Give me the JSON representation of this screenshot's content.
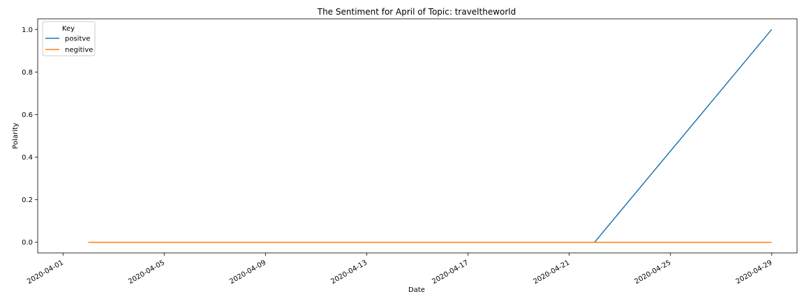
{
  "chart_data": {
    "type": "line",
    "title": "The Sentiment for April of Topic: traveltheworld",
    "xlabel": "Date",
    "ylabel": "Polarity",
    "xlim": [
      "2020-03-31",
      "2020-04-30"
    ],
    "ylim": [
      -0.05,
      1.05
    ],
    "x_ticks": [
      "2020-04-01",
      "2020-04-05",
      "2020-04-09",
      "2020-04-13",
      "2020-04-17",
      "2020-04-21",
      "2020-04-25",
      "2020-04-29"
    ],
    "y_ticks": [
      0.0,
      0.2,
      0.4,
      0.6,
      0.8,
      1.0
    ],
    "y_tick_labels": [
      "0.0",
      "0.2",
      "0.4",
      "0.6",
      "0.8",
      "1.0"
    ],
    "grid": false,
    "legend": {
      "title": "Key",
      "placement": "top-left"
    },
    "series": [
      {
        "name": "positve",
        "color": "#1f77b4",
        "points": [
          {
            "x": "2020-04-02",
            "y": 0.0
          },
          {
            "x": "2020-04-22",
            "y": 0.0
          },
          {
            "x": "2020-04-29",
            "y": 1.0
          }
        ]
      },
      {
        "name": "negitive",
        "color": "#ff7f0e",
        "points": [
          {
            "x": "2020-04-02",
            "y": 0.0
          },
          {
            "x": "2020-04-22",
            "y": 0.0
          },
          {
            "x": "2020-04-29",
            "y": 0.0
          }
        ]
      }
    ]
  }
}
